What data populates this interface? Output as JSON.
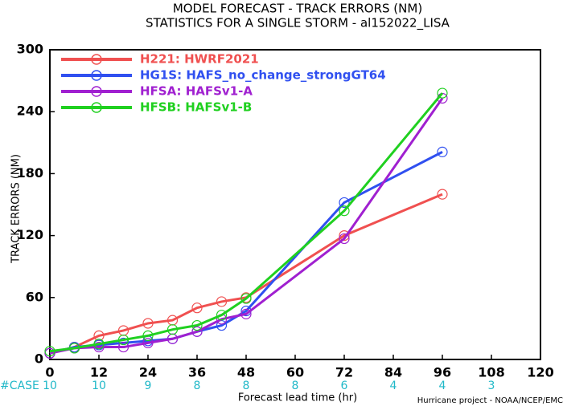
{
  "chart_data": {
    "type": "line",
    "title": "MODEL FORECAST - TRACK ERRORS (NM)",
    "subtitle": "STATISTICS FOR A SINGLE STORM - al152022_LISA",
    "x_label": "Forecast lead time (hr)",
    "y_label": "TRACK ERRORS (NM)",
    "footer": "Hurricane project - NOAA/NCEP/EMC",
    "case_label": "#CASE",
    "case_counts": [
      10,
      10,
      9,
      8,
      8,
      8,
      6,
      4,
      4,
      3
    ],
    "x": [
      0,
      6,
      12,
      18,
      24,
      30,
      36,
      42,
      48,
      72,
      96
    ],
    "series": [
      {
        "name": "H221: HWRF2021",
        "color": "#f05050",
        "values": [
          6,
          12,
          23,
          28,
          35,
          38,
          50,
          56,
          60,
          120,
          160
        ]
      },
      {
        "name": "HG1S: HAFS_no_change_strongGT64",
        "color": "#3050f0",
        "values": [
          6,
          12,
          14,
          16,
          18,
          20,
          27,
          33,
          47,
          152,
          201
        ]
      },
      {
        "name": "HFSA: HAFSv1-A",
        "color": "#a020d0",
        "values": [
          6,
          11,
          12,
          12,
          16,
          20,
          27,
          39,
          44,
          117,
          253
        ]
      },
      {
        "name": "HFSB: HAFSv1-B",
        "color": "#20d020",
        "values": [
          8,
          11,
          15,
          19,
          23,
          29,
          33,
          43,
          59,
          144,
          258
        ]
      }
    ],
    "xlim": [
      0,
      120
    ],
    "xticks": [
      0,
      12,
      24,
      36,
      48,
      60,
      72,
      84,
      96,
      108,
      120
    ],
    "ylim": [
      0,
      300
    ],
    "yticks": [
      0,
      60,
      120,
      180,
      240,
      300
    ],
    "grid": false,
    "legend": "upper left"
  }
}
